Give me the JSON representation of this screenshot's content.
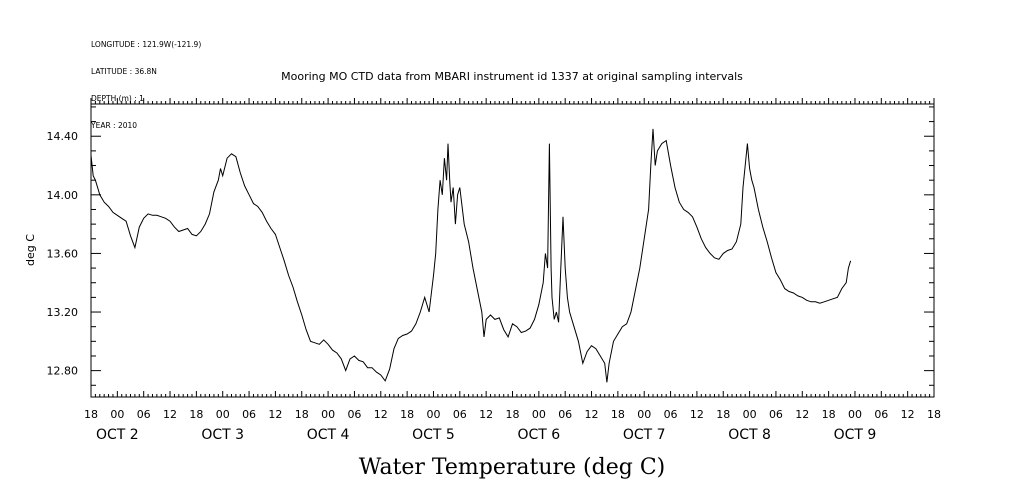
{
  "header": {
    "meta_lines": [
      "LONGITUDE : 121.9W(-121.9)",
      "LATITUDE : 36.8N",
      "DEPTH (m) : 1",
      "YEAR : 2010"
    ]
  },
  "chart_data": {
    "type": "line",
    "title": "Mooring MO CTD data from MBARI instrument id 1337 at original sampling intervals",
    "xlabel": "Water Temperature (deg C)",
    "ylabel": "deg C",
    "ylim": [
      12.62,
      14.62
    ],
    "yticks": [
      12.8,
      13.2,
      13.6,
      14.0,
      14.4
    ],
    "ytick_labels": [
      "12.80",
      "13.20",
      "13.60",
      "14.00",
      "14.40"
    ],
    "x_unit": "hours since 2010-10-01 18:00",
    "xlim": [
      0,
      192
    ],
    "hour_ticks": [
      "18",
      "00",
      "06",
      "12",
      "18",
      "00",
      "06",
      "12",
      "18",
      "00",
      "06",
      "12",
      "18",
      "00",
      "06",
      "12",
      "18",
      "00",
      "06",
      "12",
      "18",
      "00",
      "06",
      "12",
      "18",
      "00",
      "06",
      "12",
      "18",
      "00",
      "06",
      "12",
      "18"
    ],
    "day_labels": [
      {
        "hour": 6,
        "label": "OCT  2"
      },
      {
        "hour": 30,
        "label": "OCT  3"
      },
      {
        "hour": 54,
        "label": "OCT  4"
      },
      {
        "hour": 78,
        "label": "OCT  5"
      },
      {
        "hour": 102,
        "label": "OCT  6"
      },
      {
        "hour": 126,
        "label": "OCT  7"
      },
      {
        "hour": 150,
        "label": "OCT  8"
      },
      {
        "hour": 174,
        "label": "OCT  9"
      }
    ],
    "grid": false,
    "series": [
      {
        "color": "#000000",
        "points": [
          [
            0,
            14.27
          ],
          [
            0.5,
            14.13
          ],
          [
            1,
            14.1
          ],
          [
            2,
            14.0
          ],
          [
            3,
            13.95
          ],
          [
            4,
            13.92
          ],
          [
            5,
            13.88
          ],
          [
            6,
            13.86
          ],
          [
            7,
            13.84
          ],
          [
            8,
            13.82
          ],
          [
            9,
            13.72
          ],
          [
            10,
            13.64
          ],
          [
            11,
            13.78
          ],
          [
            12,
            13.84
          ],
          [
            13,
            13.87
          ],
          [
            14,
            13.86
          ],
          [
            15,
            13.86
          ],
          [
            16,
            13.85
          ],
          [
            17,
            13.84
          ],
          [
            18,
            13.82
          ],
          [
            19,
            13.78
          ],
          [
            20,
            13.75
          ],
          [
            21,
            13.76
          ],
          [
            22,
            13.77
          ],
          [
            23,
            13.73
          ],
          [
            24,
            13.72
          ],
          [
            25,
            13.75
          ],
          [
            26,
            13.8
          ],
          [
            27,
            13.87
          ],
          [
            28,
            14.02
          ],
          [
            29,
            14.1
          ],
          [
            29.5,
            14.18
          ],
          [
            30,
            14.13
          ],
          [
            31,
            14.25
          ],
          [
            32,
            14.28
          ],
          [
            33,
            14.26
          ],
          [
            34,
            14.15
          ],
          [
            35,
            14.06
          ],
          [
            36,
            14.0
          ],
          [
            37,
            13.94
          ],
          [
            38,
            13.92
          ],
          [
            39,
            13.88
          ],
          [
            40,
            13.82
          ],
          [
            41,
            13.77
          ],
          [
            42,
            13.73
          ],
          [
            43,
            13.64
          ],
          [
            44,
            13.55
          ],
          [
            45,
            13.45
          ],
          [
            46,
            13.37
          ],
          [
            47,
            13.27
          ],
          [
            48,
            13.18
          ],
          [
            49,
            13.08
          ],
          [
            50,
            13.0
          ],
          [
            51,
            12.99
          ],
          [
            52,
            12.98
          ],
          [
            53,
            13.01
          ],
          [
            54,
            12.98
          ],
          [
            55,
            12.94
          ],
          [
            56,
            12.92
          ],
          [
            57,
            12.88
          ],
          [
            58,
            12.8
          ],
          [
            59,
            12.88
          ],
          [
            60,
            12.9
          ],
          [
            61,
            12.87
          ],
          [
            62,
            12.86
          ],
          [
            63,
            12.82
          ],
          [
            64,
            12.82
          ],
          [
            65,
            12.79
          ],
          [
            66,
            12.77
          ],
          [
            67,
            12.73
          ],
          [
            68,
            12.81
          ],
          [
            69,
            12.95
          ],
          [
            70,
            13.02
          ],
          [
            71,
            13.04
          ],
          [
            72,
            13.05
          ],
          [
            73,
            13.07
          ],
          [
            74,
            13.12
          ],
          [
            75,
            13.2
          ],
          [
            76,
            13.3
          ],
          [
            77,
            13.2
          ],
          [
            78,
            13.45
          ],
          [
            78.5,
            13.6
          ],
          [
            79,
            13.9
          ],
          [
            79.5,
            14.1
          ],
          [
            80,
            14.0
          ],
          [
            80.5,
            14.25
          ],
          [
            81,
            14.1
          ],
          [
            81.3,
            14.35
          ],
          [
            81.7,
            14.1
          ],
          [
            82,
            13.95
          ],
          [
            82.5,
            14.05
          ],
          [
            83,
            13.8
          ],
          [
            83.5,
            14.0
          ],
          [
            84,
            14.05
          ],
          [
            85,
            13.8
          ],
          [
            86,
            13.68
          ],
          [
            87,
            13.5
          ],
          [
            88,
            13.35
          ],
          [
            89,
            13.2
          ],
          [
            89.5,
            13.03
          ],
          [
            90,
            13.15
          ],
          [
            91,
            13.18
          ],
          [
            92,
            13.15
          ],
          [
            93,
            13.16
          ],
          [
            94,
            13.08
          ],
          [
            95,
            13.03
          ],
          [
            96,
            13.12
          ],
          [
            97,
            13.1
          ],
          [
            98,
            13.06
          ],
          [
            99,
            13.07
          ],
          [
            100,
            13.09
          ],
          [
            101,
            13.15
          ],
          [
            102,
            13.25
          ],
          [
            103,
            13.4
          ],
          [
            103.5,
            13.6
          ],
          [
            104,
            13.5
          ],
          [
            104.4,
            14.35
          ],
          [
            104.8,
            13.5
          ],
          [
            105,
            13.3
          ],
          [
            105.5,
            13.15
          ],
          [
            106,
            13.2
          ],
          [
            106.5,
            13.13
          ],
          [
            107,
            13.5
          ],
          [
            107.5,
            13.85
          ],
          [
            108,
            13.5
          ],
          [
            108.5,
            13.3
          ],
          [
            109,
            13.2
          ],
          [
            110,
            13.1
          ],
          [
            111,
            13.0
          ],
          [
            112,
            12.85
          ],
          [
            113,
            12.93
          ],
          [
            114,
            12.97
          ],
          [
            115,
            12.95
          ],
          [
            116,
            12.9
          ],
          [
            117,
            12.85
          ],
          [
            117.5,
            12.72
          ],
          [
            118,
            12.85
          ],
          [
            119,
            13.0
          ],
          [
            120,
            13.05
          ],
          [
            121,
            13.1
          ],
          [
            122,
            13.12
          ],
          [
            123,
            13.2
          ],
          [
            124,
            13.35
          ],
          [
            125,
            13.5
          ],
          [
            126,
            13.7
          ],
          [
            127,
            13.9
          ],
          [
            127.5,
            14.2
          ],
          [
            128,
            14.45
          ],
          [
            128.5,
            14.2
          ],
          [
            129,
            14.3
          ],
          [
            130,
            14.35
          ],
          [
            131,
            14.37
          ],
          [
            132,
            14.2
          ],
          [
            133,
            14.05
          ],
          [
            134,
            13.95
          ],
          [
            135,
            13.9
          ],
          [
            136,
            13.88
          ],
          [
            137,
            13.85
          ],
          [
            138,
            13.78
          ],
          [
            139,
            13.7
          ],
          [
            140,
            13.64
          ],
          [
            141,
            13.6
          ],
          [
            142,
            13.57
          ],
          [
            143,
            13.56
          ],
          [
            144,
            13.6
          ],
          [
            145,
            13.62
          ],
          [
            146,
            13.63
          ],
          [
            147,
            13.68
          ],
          [
            148,
            13.8
          ],
          [
            148.5,
            14.05
          ],
          [
            149,
            14.2
          ],
          [
            149.5,
            14.35
          ],
          [
            150,
            14.18
          ],
          [
            150.5,
            14.1
          ],
          [
            151,
            14.05
          ],
          [
            152,
            13.9
          ],
          [
            153,
            13.78
          ],
          [
            154,
            13.68
          ],
          [
            155,
            13.57
          ],
          [
            156,
            13.47
          ],
          [
            157,
            13.42
          ],
          [
            158,
            13.36
          ],
          [
            159,
            13.34
          ],
          [
            160,
            13.33
          ],
          [
            161,
            13.31
          ],
          [
            162,
            13.3
          ],
          [
            163,
            13.28
          ],
          [
            164,
            13.27
          ],
          [
            165,
            13.27
          ],
          [
            166,
            13.26
          ],
          [
            167,
            13.27
          ],
          [
            168,
            13.28
          ],
          [
            169,
            13.29
          ],
          [
            170,
            13.3
          ],
          [
            171,
            13.36
          ],
          [
            172,
            13.4
          ],
          [
            172.5,
            13.5
          ],
          [
            173,
            13.55
          ]
        ]
      }
    ]
  }
}
